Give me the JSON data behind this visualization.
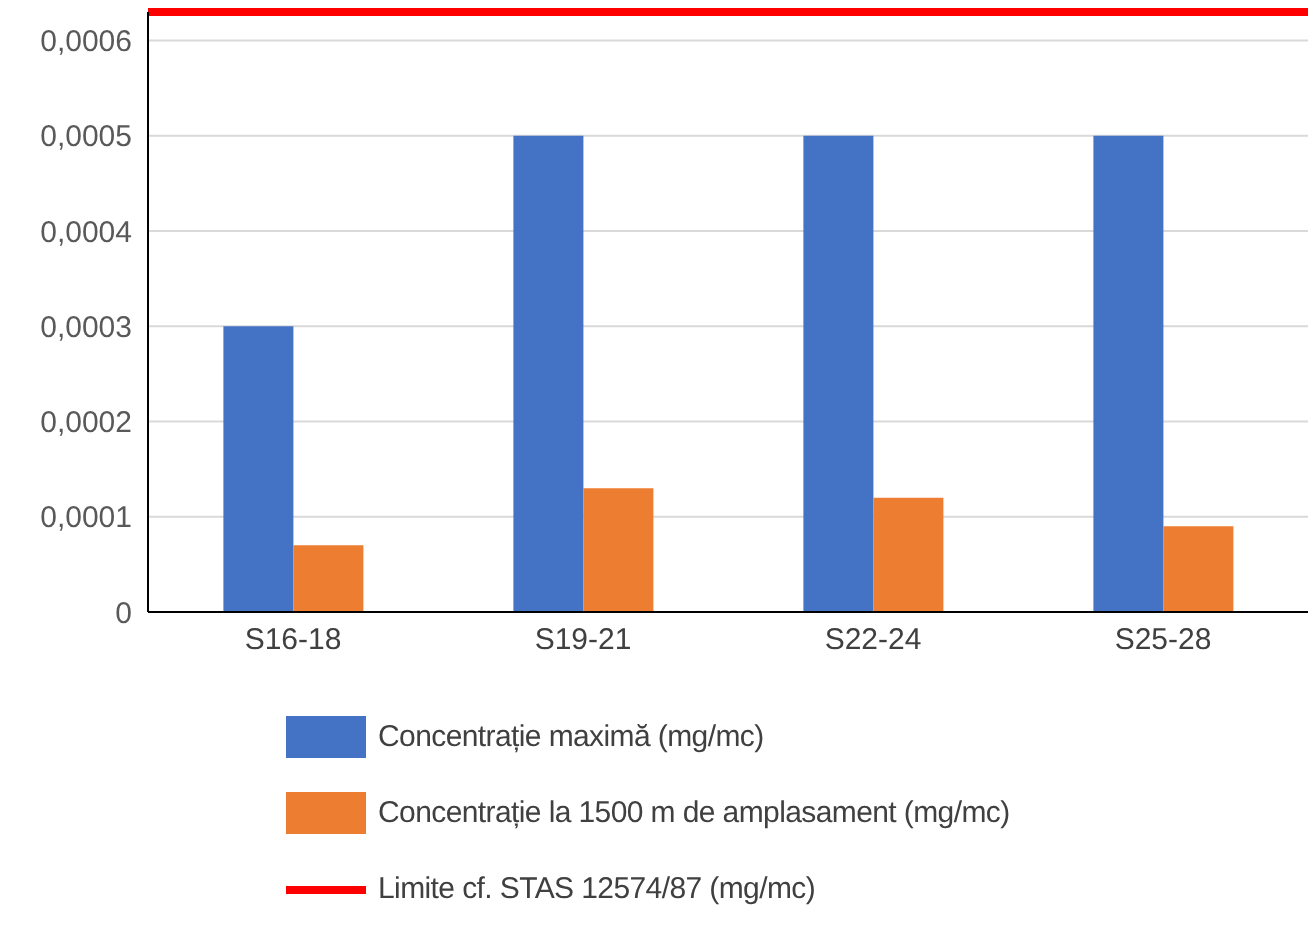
{
  "chart_data": {
    "type": "bar",
    "categories": [
      "S16-18",
      "S19-21",
      "S22-24",
      "S25-28"
    ],
    "series": [
      {
        "name": "Concentrație maximă (mg/mc)",
        "color": "#4472c4",
        "values": [
          0.0003,
          0.0005,
          0.0005,
          0.0005
        ]
      },
      {
        "name": "Concentrație la 1500 m de amplasament (mg/mc)",
        "color": "#ed7d31",
        "values": [
          7e-05,
          0.00013,
          0.00012,
          9e-05
        ]
      }
    ],
    "ref_lines": [
      {
        "axis": "y",
        "value": 0.00063,
        "label": "Limite cf. STAS 12574/87 (mg/mc)",
        "color": "#ff0000"
      }
    ],
    "ylim": [
      0,
      0.00063
    ],
    "yticks": [
      {
        "value": 0,
        "label": "0"
      },
      {
        "value": 0.0001,
        "label": "0,0001"
      },
      {
        "value": 0.0002,
        "label": "0,0002"
      },
      {
        "value": 0.0003,
        "label": "0,0003"
      },
      {
        "value": 0.0004,
        "label": "0,0004"
      },
      {
        "value": 0.0005,
        "label": "0,0005"
      },
      {
        "value": 0.0006,
        "label": "0,0006"
      }
    ],
    "grid": "y",
    "legend": "bottom"
  }
}
